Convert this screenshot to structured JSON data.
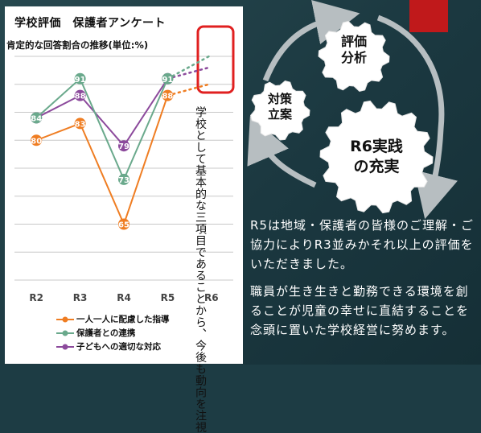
{
  "slide": {
    "title": "学校評価　保護者アンケート",
    "subtitle": "肯定的な回答割合の推移(単位:%)",
    "annotation": "学校として基本的な三項目であることから、今後も動向を注視"
  },
  "cycle": {
    "top": "評価\n分析",
    "left": "対策\n立案",
    "center": "R6実践\nの充実"
  },
  "paragraphs": [
    "R5は地域・保護者の皆様のご理解・ご協力によりR3並みかそれ以上の評価をいただきました。",
    "職員が生き生きと勤務できる環境を創ることが児童の幸せに直結することを念頭に置いた学校経営に努めます。"
  ],
  "colors": {
    "background": "#1d3c44",
    "accent_red": "#c0191b",
    "highlight_box": "#e02020",
    "series_orange": "#ef7d22",
    "series_green": "#6aa98c",
    "series_purple": "#8c4a9c"
  },
  "chart_data": {
    "type": "line",
    "categories": [
      "R2",
      "R3",
      "R4",
      "R5",
      "R6"
    ],
    "ylim": [
      55,
      95
    ],
    "grid": true,
    "legend": "bottom",
    "series": [
      {
        "name": "一人一人に配慮した指導",
        "color": "#ef7d22",
        "values": [
          80,
          83,
          65,
          88,
          null
        ],
        "projection": 90
      },
      {
        "name": "保護者との連携",
        "color": "#6aa98c",
        "values": [
          84,
          91,
          73,
          91,
          null
        ],
        "projection": 95
      },
      {
        "name": "子どもへの適切な対応",
        "color": "#8c4a9c",
        "values": [
          84,
          88,
          79,
          91,
          null
        ],
        "projection": 93
      }
    ]
  }
}
